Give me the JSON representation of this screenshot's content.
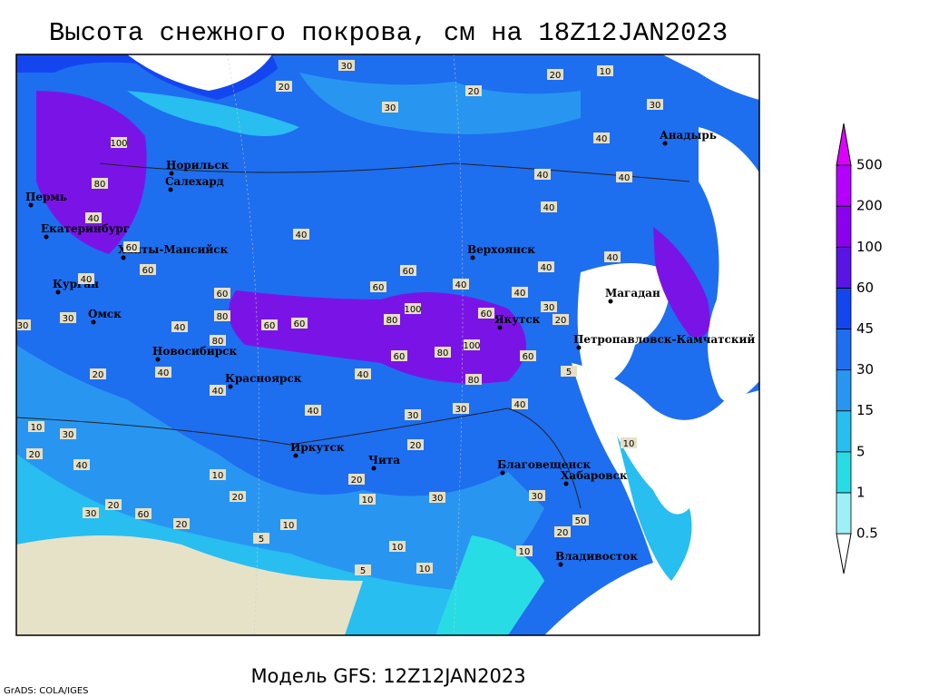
{
  "title": "Высота снежного покрова, см на 18Z12JAN2023",
  "footer": "Модель GFS: 12Z12JAN2023",
  "credit": "GrADS: COLA/IGES",
  "colorbar": {
    "levels": [
      0.5,
      1,
      5,
      15,
      30,
      45,
      60,
      100,
      200,
      500
    ],
    "colors": [
      "#ffffff",
      "#9ef0f8",
      "#28dce6",
      "#28bef0",
      "#2896f0",
      "#1e6ef0",
      "#1446f0",
      "#5a14e6",
      "#8c00f0",
      "#b400ff",
      "#dc00ff"
    ]
  },
  "cities": [
    "Норильск",
    "Салехард",
    "Пермь",
    "Екатеринбург",
    "Ханты-Мансийск",
    "Курган",
    "Омск",
    "Новосибирск",
    "Красноярск",
    "Иркутск",
    "Чита",
    "Верхоянск",
    "Якутск",
    "Магадан",
    "Петропавловск-Камчатский",
    "Анадырь",
    "Благовещенск",
    "Хабаровск",
    "Владивосток"
  ],
  "contour_labels": [
    30,
    10,
    20,
    20,
    30,
    20,
    100,
    80,
    40,
    60,
    40,
    30,
    30,
    60,
    60,
    80,
    60,
    60,
    40,
    80,
    40,
    60,
    60,
    40,
    100,
    80,
    60,
    100,
    80,
    60,
    80,
    60,
    40,
    40,
    40,
    40,
    40,
    40,
    30,
    20,
    40,
    40,
    30,
    30,
    40,
    40,
    40,
    20,
    10,
    30,
    20,
    40,
    20,
    30,
    60,
    20,
    10,
    20,
    10,
    5,
    20,
    10,
    30,
    20,
    10,
    10,
    10,
    5,
    50,
    20,
    30,
    5,
    30,
    40,
    10
  ]
}
